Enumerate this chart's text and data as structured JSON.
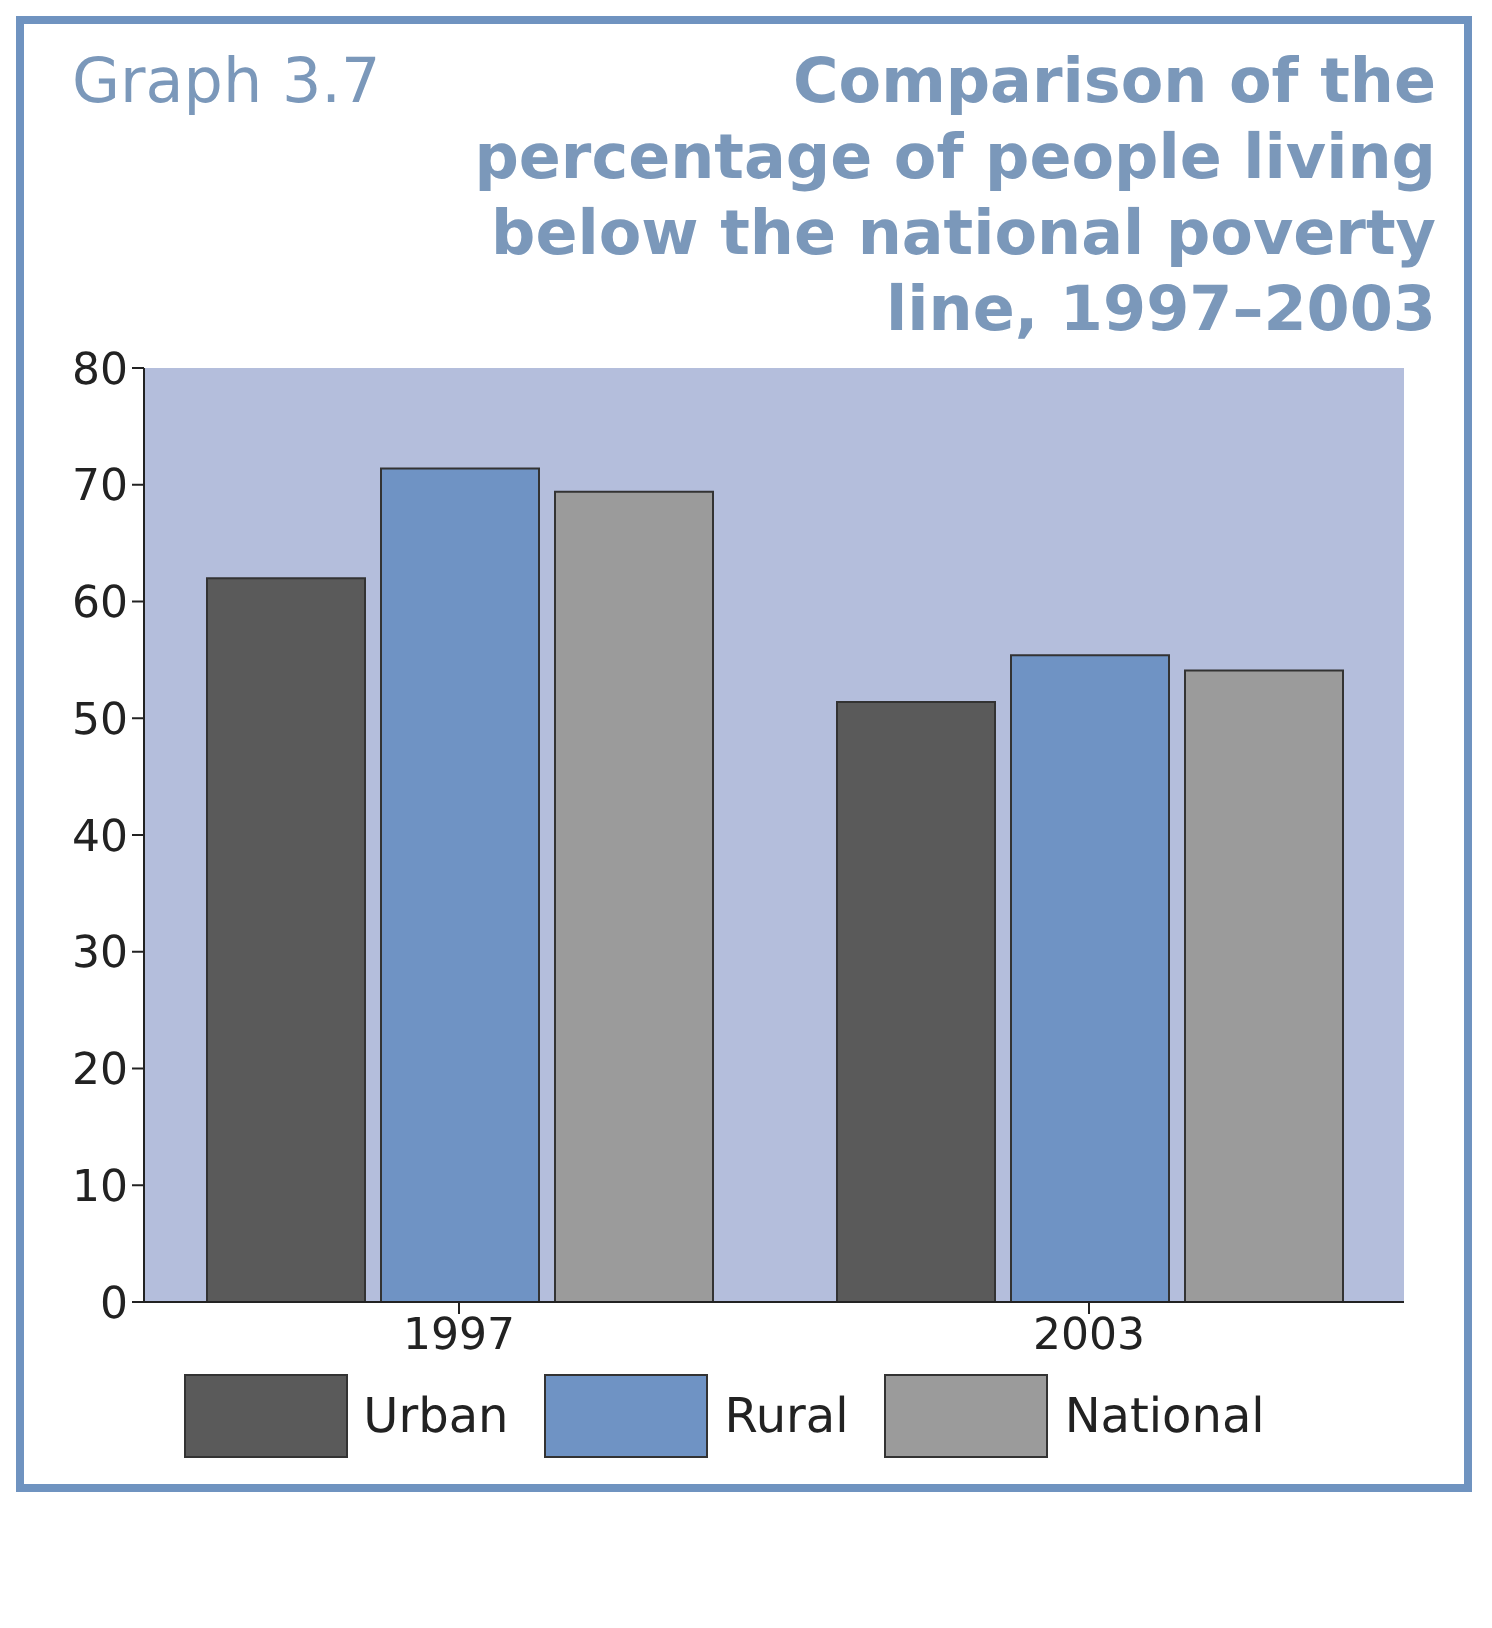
{
  "chart_data": {
    "type": "bar",
    "title": "Comparison of the percentage of people living below the national poverty line, 1997–2003",
    "annotations": [
      "Graph 3.7"
    ],
    "categories": [
      "1997",
      "2003"
    ],
    "series": [
      {
        "name": "Urban",
        "color": "#5a5a5a",
        "values": [
          62,
          51.4
        ]
      },
      {
        "name": "Rural",
        "color": "#6f93c4",
        "values": [
          71.4,
          55.4
        ]
      },
      {
        "name": "National",
        "color": "#9b9b9b",
        "values": [
          69.4,
          54.1
        ]
      }
    ],
    "ylim": [
      0,
      80
    ],
    "yticks": [
      0,
      10,
      20,
      30,
      40,
      50,
      60,
      70,
      80
    ],
    "grid": false,
    "legend": "bottom"
  }
}
